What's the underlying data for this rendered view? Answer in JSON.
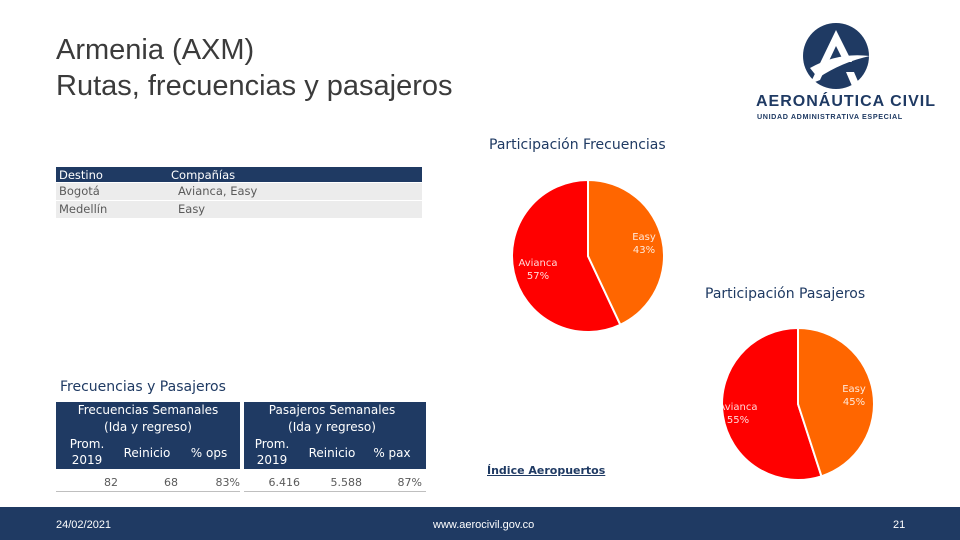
{
  "title": {
    "line1": "Armenia (AXM)",
    "line2": "Rutas, frecuencias y pasajeros"
  },
  "logo": {
    "name": "AERONÁUTICA CIVIL",
    "subtitle": "UNIDAD ADMINISTRATIVA ESPECIAL",
    "colors": {
      "navy": "#1f3a63",
      "white": "#ffffff"
    }
  },
  "destinos": {
    "headers": [
      "Destino",
      "Compañías"
    ],
    "rows": [
      [
        "Bogotá",
        "Avianca, Easy"
      ],
      [
        "Medellín",
        "Easy"
      ]
    ]
  },
  "chart_data": [
    {
      "type": "pie",
      "title": "Participación Frecuencias",
      "labels": [
        "Avianca",
        "Easy"
      ],
      "values": [
        57,
        43
      ],
      "value_labels": [
        "57%",
        "43%"
      ],
      "colors": [
        "#ff0000",
        "#ff6600"
      ]
    },
    {
      "type": "pie",
      "title": "Participación Pasajeros",
      "labels": [
        "Avianca",
        "Easy"
      ],
      "values": [
        55,
        45
      ],
      "value_labels": [
        "55%",
        "45%"
      ],
      "colors": [
        "#ff0000",
        "#ff6600"
      ]
    }
  ],
  "frecuencias_pasajeros": {
    "section_title": "Frecuencias y Pasajeros",
    "frecuencias": {
      "group_line1": "Frecuencias Semanales",
      "group_line2": "(Ida y regreso)",
      "col_prom_line1": "Prom.",
      "col_prom_line2": "2019",
      "col_reinicio": "Reinicio",
      "col_pct": "% ops",
      "values": [
        "82",
        "68",
        "83%"
      ]
    },
    "pasajeros": {
      "group_line1": "Pasajeros Semanales",
      "group_line2": "(Ida y regreso)",
      "col_prom_line1": "Prom.",
      "col_prom_line2": "2019",
      "col_reinicio": "Reinicio",
      "col_pct": "% pax",
      "values": [
        "6.416",
        "5.588",
        "87%"
      ]
    }
  },
  "link": {
    "label": "Índice Aeropuertos"
  },
  "footer": {
    "date": "24/02/2021",
    "url": "www.aerocivil.gov.co",
    "page": "21",
    "color": "#1f3a63"
  }
}
